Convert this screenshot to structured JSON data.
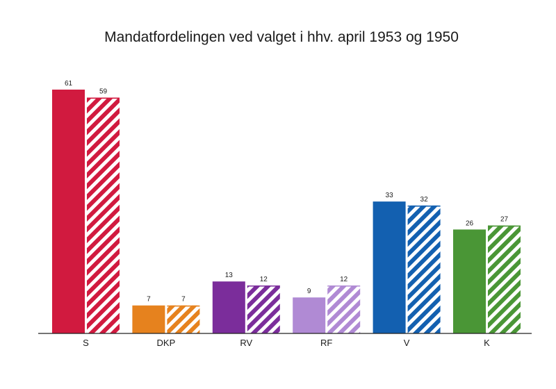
{
  "chart_data": {
    "type": "bar",
    "title": "Mandatfordelingen ved valget i hhv. april 1953 og 1950",
    "categories": [
      "S",
      "DKP",
      "RV",
      "RF",
      "V",
      "K"
    ],
    "colors": [
      "#d11a3f",
      "#e6821e",
      "#7b2d9b",
      "#b08ad4",
      "#1360b0",
      "#4a9636"
    ],
    "series": [
      {
        "style": "solid",
        "values": [
          61,
          7,
          13,
          9,
          33,
          26
        ]
      },
      {
        "style": "hatched",
        "values": [
          59,
          7,
          12,
          12,
          32,
          27
        ]
      }
    ],
    "ylim": [
      0,
      61
    ],
    "grid": false,
    "legend": "none"
  }
}
